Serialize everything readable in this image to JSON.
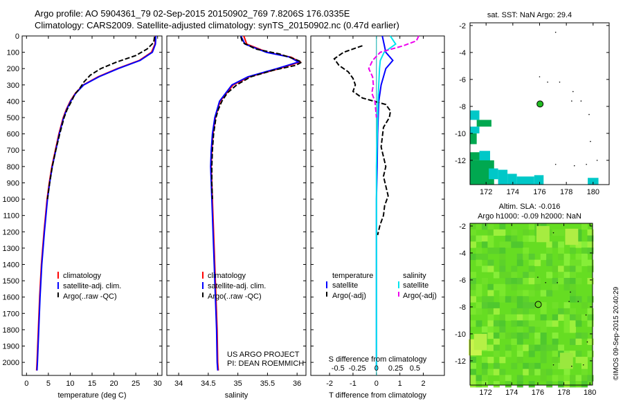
{
  "header": {
    "line1": "Argo profile: AO 5904361_79 02-Sep-2015 20150902_769 7.8206S 176.0335E",
    "line2": "Climatology: CARS2009. Satellite-adjusted climatology: synTS_20150902.nc (0.47d earlier)"
  },
  "colors": {
    "climatology": "#ff0000",
    "satellite": "#0000ff",
    "argo": "#000000",
    "sal_satellite": "#00e5ee",
    "sal_argo": "#ee00ee",
    "sst_teal": "#00c8c8",
    "sst_green": "#00a850",
    "sla_base": "#66dd22"
  },
  "chart_data": [
    {
      "id": "temperature",
      "type": "line",
      "xlabel": "temperature (deg C)",
      "xlim": [
        -1,
        31
      ],
      "xticks": [
        0,
        5,
        10,
        15,
        20,
        25,
        30
      ],
      "ylim": [
        2080,
        0
      ],
      "yticks": [
        0,
        100,
        200,
        300,
        400,
        500,
        600,
        700,
        800,
        900,
        1000,
        1100,
        1200,
        1300,
        1400,
        1500,
        1600,
        1700,
        1800,
        1900,
        2000
      ],
      "legend": [
        "climatology",
        "satellite-adj. clim.",
        "Argo(..raw -QC)"
      ],
      "legend_position": "lower-center",
      "series": [
        {
          "name": "climatology",
          "depth": [
            0,
            50,
            100,
            150,
            200,
            250,
            300,
            350,
            400,
            450,
            500,
            600,
            700,
            800,
            900,
            1000,
            1200,
            1400,
            1600,
            1800,
            2000,
            2050
          ],
          "values": [
            29.5,
            29.4,
            28.6,
            25.8,
            20.8,
            16.4,
            13.0,
            11.2,
            10.0,
            9.1,
            8.4,
            7.4,
            6.6,
            5.8,
            5.2,
            4.7,
            4.0,
            3.4,
            3.0,
            2.7,
            2.4,
            2.3
          ]
        },
        {
          "name": "satellite",
          "depth": [
            0,
            50,
            100,
            150,
            200,
            250,
            300,
            350,
            400,
            450,
            500,
            600,
            700,
            800,
            900,
            1000,
            1200,
            1400,
            1600,
            1800,
            2000,
            2050
          ],
          "values": [
            29.6,
            29.5,
            28.8,
            26.0,
            21.0,
            16.6,
            13.1,
            11.3,
            10.1,
            9.2,
            8.5,
            7.5,
            6.7,
            5.9,
            5.3,
            4.8,
            4.1,
            3.5,
            3.1,
            2.8,
            2.5,
            2.4
          ]
        },
        {
          "name": "argo",
          "depth": [
            5,
            40,
            80,
            120,
            160,
            200,
            240,
            280,
            320,
            360,
            400,
            450,
            500,
            600,
            700,
            800,
            900,
            1000
          ],
          "values": [
            29.3,
            29.1,
            27.6,
            25.0,
            20.6,
            17.0,
            14.6,
            13.2,
            12.2,
            11.0,
            10.3,
            9.3,
            8.6,
            7.6,
            6.7,
            5.9,
            5.3,
            4.8
          ]
        }
      ]
    },
    {
      "id": "salinity",
      "type": "line",
      "xlabel": "salinity",
      "xlim": [
        33.8,
        36.15
      ],
      "xticks": [
        34,
        34.5,
        35,
        35.5,
        36
      ],
      "ylim": [
        2080,
        0
      ],
      "legend": [
        "climatology",
        "satellite-adj. clim.",
        "Argo(..raw -QC)"
      ],
      "legend_position": "lower-center",
      "annotation": [
        "US ARGO PROJECT",
        "PI: DEAN ROEMMICH"
      ],
      "series": [
        {
          "name": "climatology",
          "depth": [
            0,
            50,
            100,
            130,
            160,
            200,
            250,
            300,
            400,
            500,
            600,
            700,
            800,
            900,
            1000,
            1200,
            1400,
            1600,
            1800,
            2000,
            2050
          ],
          "values": [
            35.1,
            35.15,
            35.5,
            35.9,
            36.05,
            35.7,
            35.2,
            34.92,
            34.7,
            34.62,
            34.58,
            34.56,
            34.55,
            34.56,
            34.57,
            34.59,
            34.61,
            34.63,
            34.65,
            34.66,
            34.67
          ]
        },
        {
          "name": "satellite",
          "depth": [
            0,
            50,
            100,
            130,
            160,
            200,
            250,
            300,
            400,
            500,
            600,
            700,
            800,
            900,
            1000,
            1200,
            1400,
            1600,
            1800,
            2000,
            2050
          ],
          "values": [
            35.05,
            35.12,
            35.48,
            35.88,
            36.02,
            35.66,
            35.17,
            34.9,
            34.69,
            34.61,
            34.57,
            34.55,
            34.54,
            34.55,
            34.56,
            34.58,
            34.6,
            34.62,
            34.64,
            34.65,
            34.66
          ]
        },
        {
          "name": "argo",
          "depth": [
            5,
            40,
            80,
            110,
            140,
            160,
            180,
            210,
            250,
            300,
            350,
            400,
            450,
            500,
            600,
            700,
            800,
            900,
            1000
          ],
          "values": [
            35.05,
            35.08,
            35.3,
            35.7,
            35.95,
            36.08,
            35.98,
            35.6,
            35.22,
            34.98,
            34.82,
            34.73,
            34.67,
            34.63,
            34.59,
            34.57,
            34.56,
            34.56,
            34.57
          ]
        }
      ]
    },
    {
      "id": "difference",
      "type": "line",
      "xlabel": "T difference from climatology",
      "top_axis_label": "S difference from climatology",
      "xlim": [
        -2.8,
        2.9
      ],
      "xticks": [
        -2,
        -1,
        0,
        1,
        2
      ],
      "top_ticks": [
        -0.5,
        -0.25,
        0,
        0.25,
        0.5
      ],
      "ylim": [
        2080,
        0
      ],
      "legend_temperature": {
        "title": "temperature",
        "items": [
          "satellite",
          "Argo(-adj)"
        ]
      },
      "legend_salinity": {
        "title": "salinity",
        "items": [
          "satellite",
          "Argo(-adj)"
        ]
      },
      "series": [
        {
          "name": "temperature satellite",
          "depth": [
            0,
            100,
            150,
            200,
            300,
            400,
            600,
            800,
            1000,
            1200,
            1400,
            1600,
            1800,
            2000,
            2050
          ],
          "values": [
            0.25,
            0.4,
            0.7,
            0.4,
            0.2,
            0.1,
            0.05,
            0.03,
            0.0,
            0.0,
            0.0,
            0.0,
            0.0,
            0.0,
            0.0
          ]
        },
        {
          "name": "temperature Argo(-adj)",
          "depth": [
            60,
            100,
            140,
            180,
            220,
            260,
            300,
            340,
            380,
            420,
            460,
            500,
            560,
            620,
            680,
            740,
            800,
            860,
            920,
            980,
            1040,
            1100,
            1160,
            1220
          ],
          "values": [
            -0.6,
            -1.4,
            -1.8,
            -1.6,
            -1.2,
            -1.0,
            -0.9,
            -1.0,
            -0.6,
            0.4,
            0.6,
            0.55,
            0.3,
            0.25,
            0.2,
            0.3,
            0.4,
            0.3,
            0.4,
            0.5,
            0.35,
            0.3,
            0.15,
            0.05
          ]
        },
        {
          "name": "salinity satellite",
          "depth": [
            0,
            50,
            100,
            150,
            200,
            300,
            400,
            600,
            800,
            1000,
            1400,
            1800,
            2050
          ],
          "values": [
            0.18,
            0.25,
            0.1,
            0.05,
            0.04,
            0.03,
            0.02,
            0.01,
            0.0,
            0.0,
            0.0,
            0.0,
            0.0
          ]
        },
        {
          "name": "salinity Argo(-adj)",
          "depth": [
            0,
            30,
            60,
            100,
            150,
            200,
            250,
            300,
            350,
            400,
            450,
            500
          ],
          "values": [
            0.55,
            0.52,
            0.35,
            0.05,
            -0.05,
            -0.1,
            -0.05,
            -0.04,
            -0.06,
            -0.02,
            -0.01,
            0.0
          ]
        }
      ]
    },
    {
      "id": "sst-map",
      "type": "heatmap",
      "title": "sat. SST: NaN  Argo: 29.4",
      "xlim": [
        170.8,
        181.2
      ],
      "ylim": [
        -13.8,
        -1.8
      ],
      "xticks": [
        172,
        174,
        176,
        178,
        180
      ],
      "yticks": [
        -2,
        -4,
        -6,
        -8,
        -10,
        -12
      ],
      "marker": {
        "lon": 176.0335,
        "lat": -7.8206
      }
    },
    {
      "id": "sla-map",
      "type": "heatmap",
      "title_line1": "Altim. SLA: -0.016",
      "title_line2": "Argo h1000: -0.09 h2000: NaN",
      "xlim": [
        170.8,
        180.2
      ],
      "ylim": [
        -13.8,
        -1.8
      ],
      "xticks": [
        172,
        174,
        176,
        178,
        180
      ],
      "yticks": [
        -2,
        -4,
        -6,
        -8,
        -10,
        -12
      ],
      "marker": {
        "lon": 176.0335,
        "lat": -7.8206
      }
    }
  ],
  "footer_stamp": "©IMOS 09-Sep-2015 20:40:29"
}
